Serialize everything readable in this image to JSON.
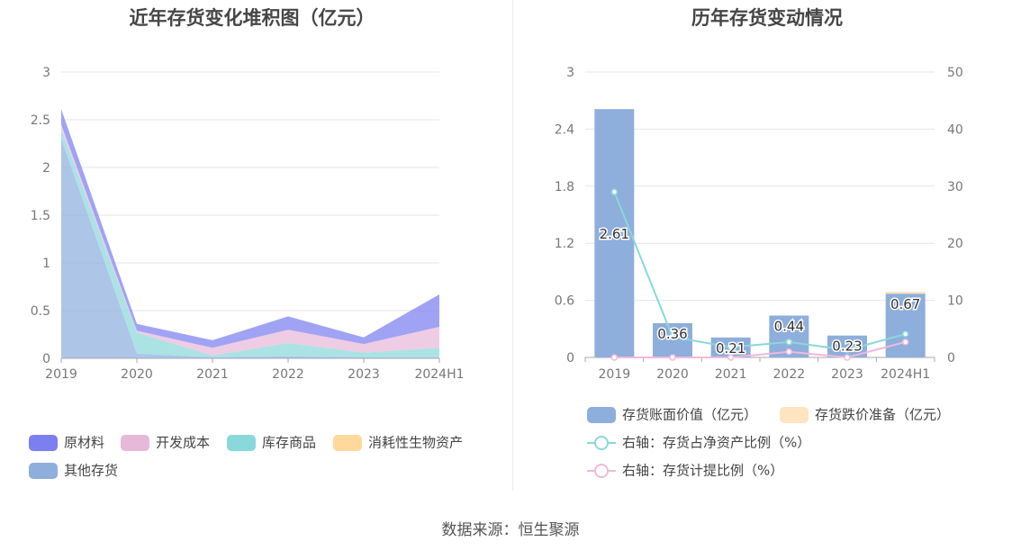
{
  "left_chart": {
    "title": "近年存货变化堆积图（亿元）",
    "legend": [
      {
        "name": "原材料",
        "color": "#7b7ff0"
      },
      {
        "name": "开发成本",
        "color": "#e8b8d9"
      },
      {
        "name": "库存商品",
        "color": "#8ad8d9"
      },
      {
        "name": "消耗性生物资产",
        "color": "#ffd89b"
      },
      {
        "name": "其他存货",
        "color": "#8eaedc"
      }
    ]
  },
  "right_chart": {
    "title": "历年存货变动情况",
    "legend": [
      {
        "name": "存货账面价值（亿元）",
        "color": "#8eaedc",
        "kind": "bar"
      },
      {
        "name": "存货跌价准备（亿元）",
        "color": "#ffe4c0",
        "kind": "bar"
      },
      {
        "name": "右轴：存货占净资产比例（%）",
        "color": "#8ad8d9",
        "kind": "line"
      },
      {
        "name": "右轴：存货计提比例（%）",
        "color": "#f0b8dc",
        "kind": "line"
      }
    ]
  },
  "source": "数据来源：恒生聚源",
  "chart_data": [
    {
      "type": "area",
      "stacked": true,
      "title": "近年存货变化堆积图（亿元）",
      "categories": [
        "2019",
        "2020",
        "2021",
        "2022",
        "2023",
        "2024H1"
      ],
      "ylim": [
        0,
        3
      ],
      "yticks": [
        0,
        0.5,
        1,
        1.5,
        2,
        2.5,
        3
      ],
      "grid": true,
      "legend_position": "bottom-left",
      "series": [
        {
          "name": "其他存货",
          "values": [
            2.3,
            0.05,
            0.01,
            0.02,
            0.01,
            0.01
          ]
        },
        {
          "name": "库存商品",
          "values": [
            0.1,
            0.22,
            0.02,
            0.14,
            0.05,
            0.1
          ]
        },
        {
          "name": "消耗性生物资产",
          "values": [
            0,
            0,
            0,
            0,
            0,
            0
          ]
        },
        {
          "name": "开发成本",
          "values": [
            0.05,
            0.02,
            0.08,
            0.14,
            0.09,
            0.22
          ]
        },
        {
          "name": "原材料",
          "values": [
            0.16,
            0.07,
            0.08,
            0.14,
            0.07,
            0.34
          ]
        }
      ]
    },
    {
      "type": "bar",
      "title": "历年存货变动情况",
      "categories": [
        "2019",
        "2020",
        "2021",
        "2022",
        "2023",
        "2024H1"
      ],
      "ylim": [
        0,
        3
      ],
      "yticks": [
        0,
        0.6,
        1.2,
        1.8,
        2.4,
        3
      ],
      "y2lim": [
        0,
        50
      ],
      "y2ticks": [
        0,
        10,
        20,
        30,
        40,
        50
      ],
      "grid": true,
      "legend_position": "bottom",
      "series": [
        {
          "name": "存货账面价值（亿元）",
          "kind": "bar",
          "axis": "left",
          "values": [
            2.61,
            0.36,
            0.21,
            0.44,
            0.23,
            0.67
          ],
          "labels": [
            "2.61",
            "0.36",
            "0.21",
            "0.44",
            "0.23",
            "0.67"
          ]
        },
        {
          "name": "存货跌价准备（亿元）",
          "kind": "bar",
          "axis": "left",
          "values": [
            0,
            0,
            0,
            0,
            0,
            0.02
          ]
        },
        {
          "name": "右轴：存货占净资产比例（%）",
          "kind": "line",
          "axis": "right",
          "values": [
            29,
            3.6,
            1.8,
            2.7,
            1.3,
            4.1
          ]
        },
        {
          "name": "右轴：存货计提比例（%）",
          "kind": "line",
          "axis": "right",
          "values": [
            0,
            0,
            0,
            1,
            0,
            2.7
          ]
        }
      ]
    }
  ]
}
